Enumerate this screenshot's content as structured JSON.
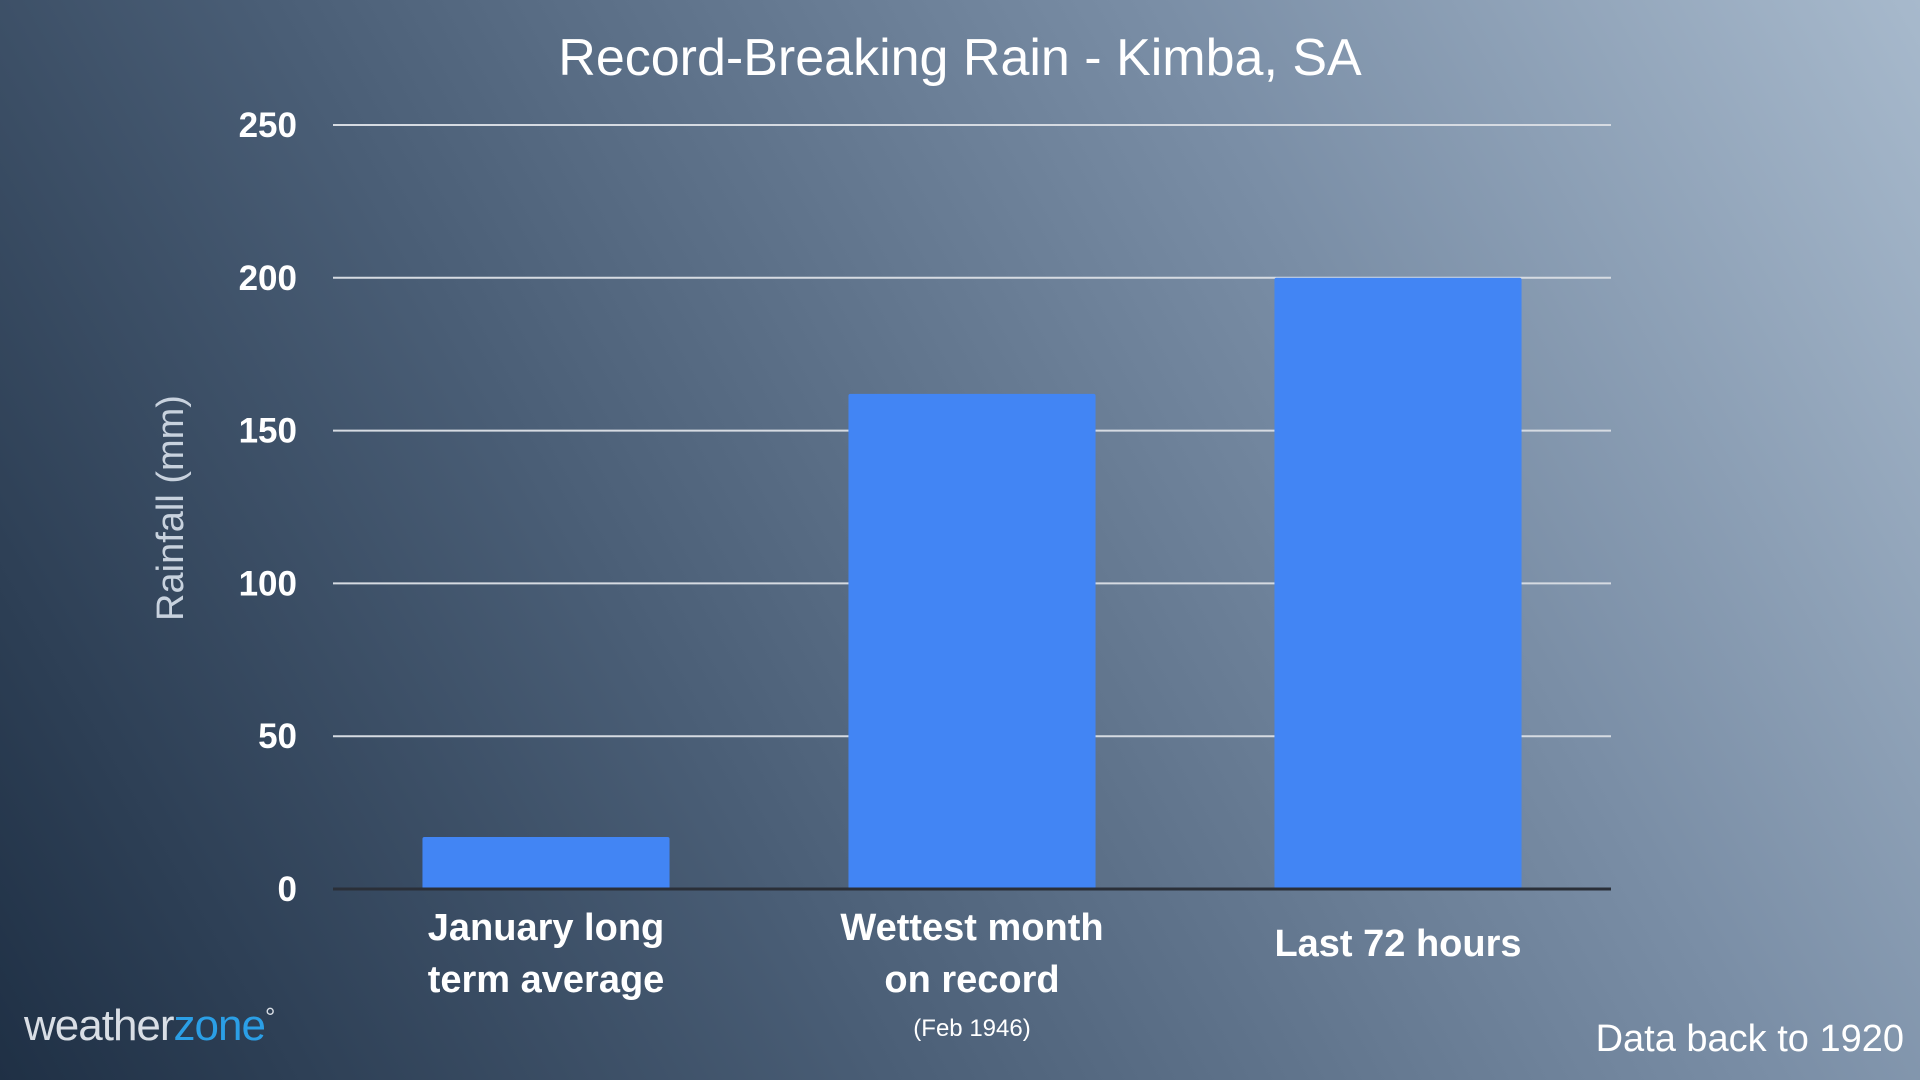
{
  "chart_data": {
    "type": "bar",
    "title": "Record-Breaking Rain - Kimba, SA",
    "xlabel": "",
    "ylabel": "Rainfall (mm)",
    "ylim": [
      0,
      250
    ],
    "yticks": [
      0,
      50,
      100,
      150,
      200,
      250
    ],
    "grid": true,
    "categories": [
      {
        "lines": [
          "January long",
          "term average"
        ],
        "note": ""
      },
      {
        "lines": [
          "Wettest month",
          "on record"
        ],
        "note": "(Feb 1946)"
      },
      {
        "lines": [
          "Last 72 hours"
        ],
        "note": ""
      }
    ],
    "values": [
      17,
      162,
      200
    ],
    "bar_color": "#4285f4"
  },
  "footer": {
    "brand_part1": "weather",
    "brand_part2": "zone",
    "brand_mark": "°",
    "note": "Data back to 1920"
  },
  "colors": {
    "background_dark": "#1f3045",
    "background_light": "#a7b9cc",
    "brand_accent": "#2b9fe6"
  }
}
